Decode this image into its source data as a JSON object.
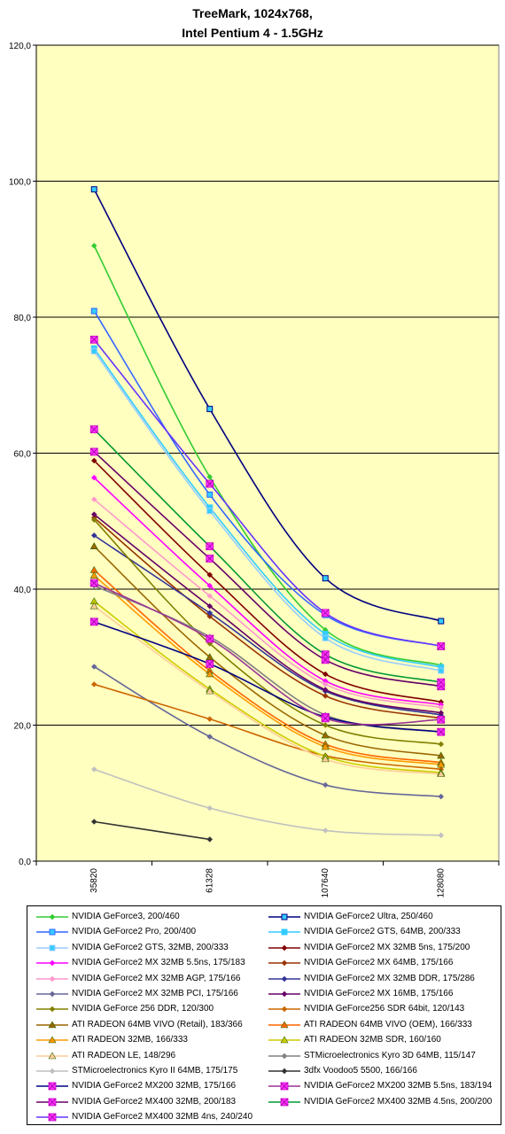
{
  "chart_data": {
    "type": "line",
    "title": [
      "TreeMark, 1024x768,",
      "Intel Pentium 4 - 1.5GHz"
    ],
    "xlabel": "",
    "ylabel": "",
    "categories": [
      "35820",
      "61328",
      "107640",
      "128080"
    ],
    "ylim": [
      0,
      120
    ],
    "yticks": [
      "0,0",
      "20,0",
      "40,0",
      "60,0",
      "80,0",
      "100,0",
      "120,0"
    ],
    "grid": "horizontal",
    "legend_position": "bottom",
    "plot_background": "#ffffc0",
    "series": [
      {
        "name": "NVIDIA GeForce3, 200/460",
        "color": "#33cc33",
        "marker": "diamond",
        "values": [
          90.5,
          56.5,
          34.0,
          28.8
        ]
      },
      {
        "name": "NVIDIA GeForce2 Ultra, 250/460",
        "color": "#000080",
        "marker": "square",
        "values": [
          98.8,
          66.5,
          41.6,
          35.3
        ]
      },
      {
        "name": "NVIDIA GeForce2 Pro, 200/400",
        "color": "#3366ff",
        "marker": "square",
        "values": [
          80.9,
          53.9,
          36.2,
          31.6
        ]
      },
      {
        "name": "NVIDIA GeForce2 GTS, 64MB, 200/333",
        "color": "#33ccff",
        "marker": "square",
        "values": [
          75.4,
          52.0,
          33.4,
          28.5
        ]
      },
      {
        "name": "NVIDIA GeForce2 GTS, 32MB, 200/333",
        "color": "#99ccff",
        "marker": "square",
        "values": [
          75.0,
          51.5,
          32.8,
          28.0
        ]
      },
      {
        "name": "NVIDIA GeForce2 MX 32MB 5ns, 175/200",
        "color": "#800000",
        "marker": "diamond",
        "values": [
          58.9,
          42.1,
          27.5,
          23.4
        ]
      },
      {
        "name": "NVIDIA GeForce2 MX 32MB 5.5ns, 175/183",
        "color": "#ff00ff",
        "marker": "diamond",
        "values": [
          56.4,
          40.5,
          26.5,
          23.0
        ]
      },
      {
        "name": "NVIDIA GeForce2 MX 64MB, 175/166",
        "color": "#993300",
        "marker": "diamond",
        "values": [
          50.5,
          36.0,
          24.3,
          21.0
        ]
      },
      {
        "name": "NVIDIA GeForce2 MX 32MB AGP, 175/166",
        "color": "#ff99cc",
        "marker": "diamond",
        "values": [
          53.2,
          39.0,
          26.0,
          22.6
        ]
      },
      {
        "name": "NVIDIA GeForce2 MX 32MB DDR, 175/286",
        "color": "#333399",
        "marker": "diamond",
        "values": [
          47.9,
          36.5,
          25.0,
          21.5
        ]
      },
      {
        "name": "NVIDIA GeForce2 MX 32MB PCI, 175/166",
        "color": "#666699",
        "marker": "diamond",
        "values": [
          28.6,
          18.3,
          11.2,
          9.5
        ]
      },
      {
        "name": "NVIDIA GeForce2 MX 16MB, 175/166",
        "color": "#660066",
        "marker": "diamond",
        "values": [
          51.0,
          37.5,
          25.2,
          21.8
        ]
      },
      {
        "name": "NVIDIA GeForce 256 DDR, 120/300",
        "color": "#808000",
        "marker": "diamond",
        "values": [
          50.2,
          32.0,
          20.0,
          17.2
        ]
      },
      {
        "name": "NVIDIA GeForce256 SDR 64bit, 120/143",
        "color": "#cc6600",
        "marker": "diamond",
        "values": [
          26.0,
          20.9,
          15.5,
          13.5
        ]
      },
      {
        "name": "ATI RADEON 64MB VIVO (Retail), 183/366",
        "color": "#996600",
        "marker": "triangle",
        "values": [
          46.3,
          30.0,
          18.5,
          15.5
        ]
      },
      {
        "name": "ATI RADEON 64MB VIVO (OEM), 166/333",
        "color": "#ff6600",
        "marker": "triangle",
        "values": [
          42.8,
          28.0,
          17.2,
          14.5
        ]
      },
      {
        "name": "ATI RADEON 32MB, 166/333",
        "color": "#ff9900",
        "marker": "triangle",
        "values": [
          42.0,
          27.5,
          16.8,
          14.2
        ]
      },
      {
        "name": "ATI RADEON 32MB SDR, 160/160",
        "color": "#cccc00",
        "marker": "triangle",
        "values": [
          38.2,
          25.3,
          15.4,
          13.0
        ]
      },
      {
        "name": "ATI RADEON LE, 148/296",
        "color": "#ffcc99",
        "marker": "triangle",
        "values": [
          37.5,
          25.0,
          15.0,
          12.8
        ]
      },
      {
        "name": "STMicroelectronics Kyro 3D 64MB, 115/147",
        "color": "#808080",
        "marker": "diamond",
        "values": [
          40.5,
          33.0,
          21.5,
          19.0
        ]
      },
      {
        "name": "STMicroelectronics Kyro II 64MB, 175/175",
        "color": "#c0c0c0",
        "marker": "diamond",
        "values": [
          13.5,
          7.8,
          4.5,
          3.8
        ]
      },
      {
        "name": "3dfx Voodoo5 5500, 166/166",
        "color": "#333333",
        "marker": "diamond",
        "values": [
          5.8,
          3.2,
          null,
          null
        ]
      },
      {
        "name": "NVIDIA GeForce2 MX200 32MB, 175/166",
        "color": "#000080",
        "marker": "xsquare",
        "values": [
          35.2,
          29.0,
          21.2,
          19.0
        ]
      },
      {
        "name": "NVIDIA GeForce2 MX200 32MB 5.5ns, 183/194",
        "color": "#993399",
        "marker": "xsquare",
        "values": [
          40.9,
          32.7,
          21.0,
          20.8
        ]
      },
      {
        "name": "NVIDIA GeForce2 MX400 32MB, 200/183",
        "color": "#660066",
        "marker": "xsquare",
        "values": [
          60.2,
          44.5,
          29.6,
          25.7
        ]
      },
      {
        "name": "NVIDIA GeForce2 MX400 32MB 4.5ns, 200/200",
        "color": "#009933",
        "marker": "xsquare",
        "values": [
          63.5,
          46.3,
          30.4,
          26.3
        ]
      },
      {
        "name": "NVIDIA GeForce2 MX400 32MB 4ns, 240/240",
        "color": "#6633ff",
        "marker": "xsquare",
        "values": [
          76.7,
          55.5,
          36.5,
          31.6
        ]
      }
    ]
  }
}
